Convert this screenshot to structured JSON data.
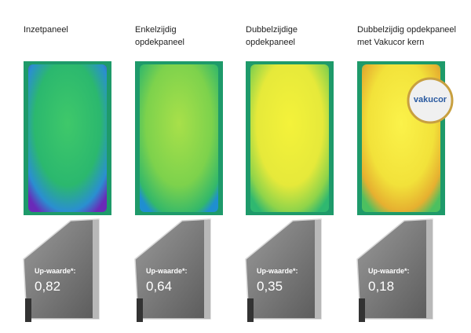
{
  "panels": [
    {
      "title": [
        "Inzetpaneel"
      ],
      "label": "Up-waarde*:",
      "value": "0,82"
    },
    {
      "title": [
        "Enkelzijdig",
        "opdekpaneel"
      ],
      "label": "Up-waarde*:",
      "value": "0,64"
    },
    {
      "title": [
        "Dubbelzijdige",
        "opdekpaneel"
      ],
      "label": "Up-waarde*:",
      "value": "0,35"
    },
    {
      "title": [
        "Dubbelzijdig opdekpaneel",
        "met Vakucor kern"
      ],
      "label": "Up-waarde*:",
      "value": "0,18"
    }
  ],
  "badge": "vakucor"
}
